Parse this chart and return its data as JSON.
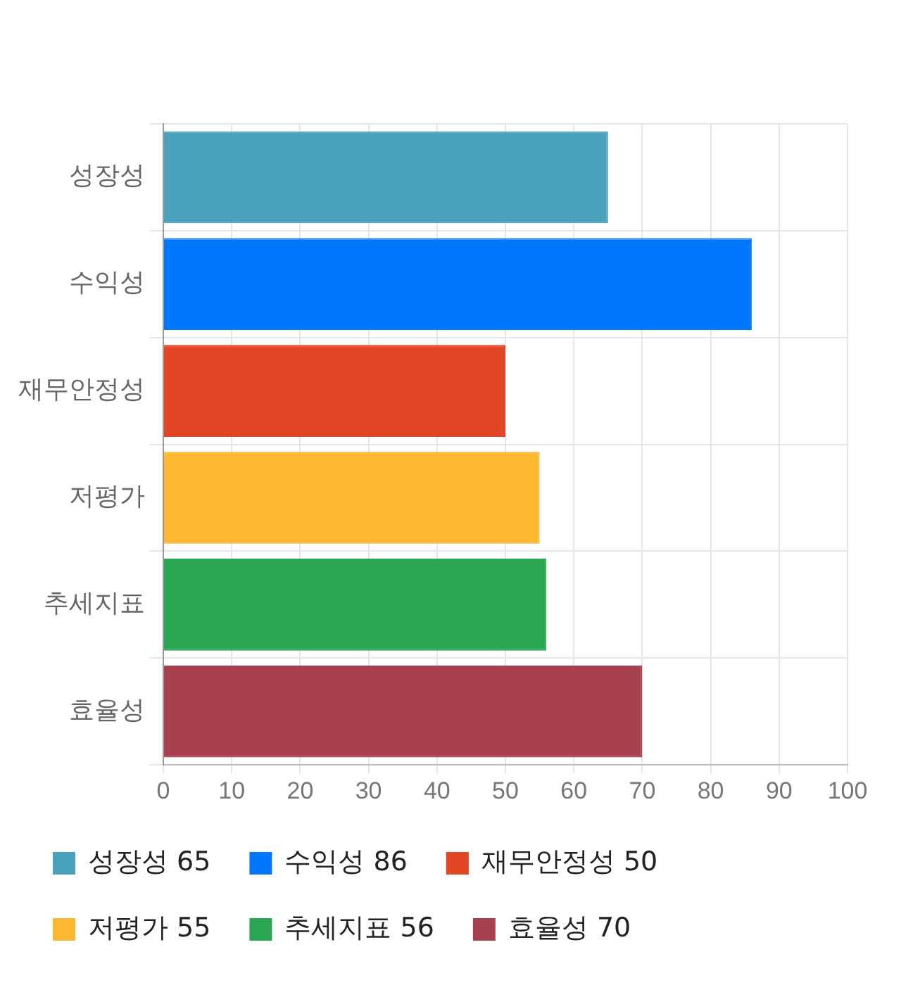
{
  "chart_data": {
    "type": "bar",
    "orientation": "horizontal",
    "categories": [
      "성장성",
      "수익성",
      "재무안정성",
      "저평가",
      "추세지표",
      "효율성"
    ],
    "series": [
      {
        "name": "성장성 65",
        "color": "#4aa1bb",
        "values": [
          65,
          null,
          null,
          null,
          null,
          null
        ]
      },
      {
        "name": "수익성 86",
        "color": "#0077ff",
        "values": [
          null,
          86,
          null,
          null,
          null,
          null
        ]
      },
      {
        "name": "재무안정성 50",
        "color": "#e24625",
        "values": [
          null,
          null,
          50,
          null,
          null,
          null
        ]
      },
      {
        "name": "저평가 55",
        "color": "#fdb731",
        "values": [
          null,
          null,
          null,
          55,
          null,
          null
        ]
      },
      {
        "name": "추세지표 56",
        "color": "#29a753",
        "values": [
          null,
          null,
          null,
          null,
          56,
          null
        ]
      },
      {
        "name": "효율성 70",
        "color": "#a8414f",
        "values": [
          null,
          null,
          null,
          null,
          null,
          70
        ]
      }
    ],
    "xlim": [
      0,
      100
    ],
    "xticks": [
      0,
      10,
      20,
      30,
      40,
      50,
      60,
      70,
      80,
      90,
      100
    ],
    "grid": true,
    "legend": "bottom"
  }
}
